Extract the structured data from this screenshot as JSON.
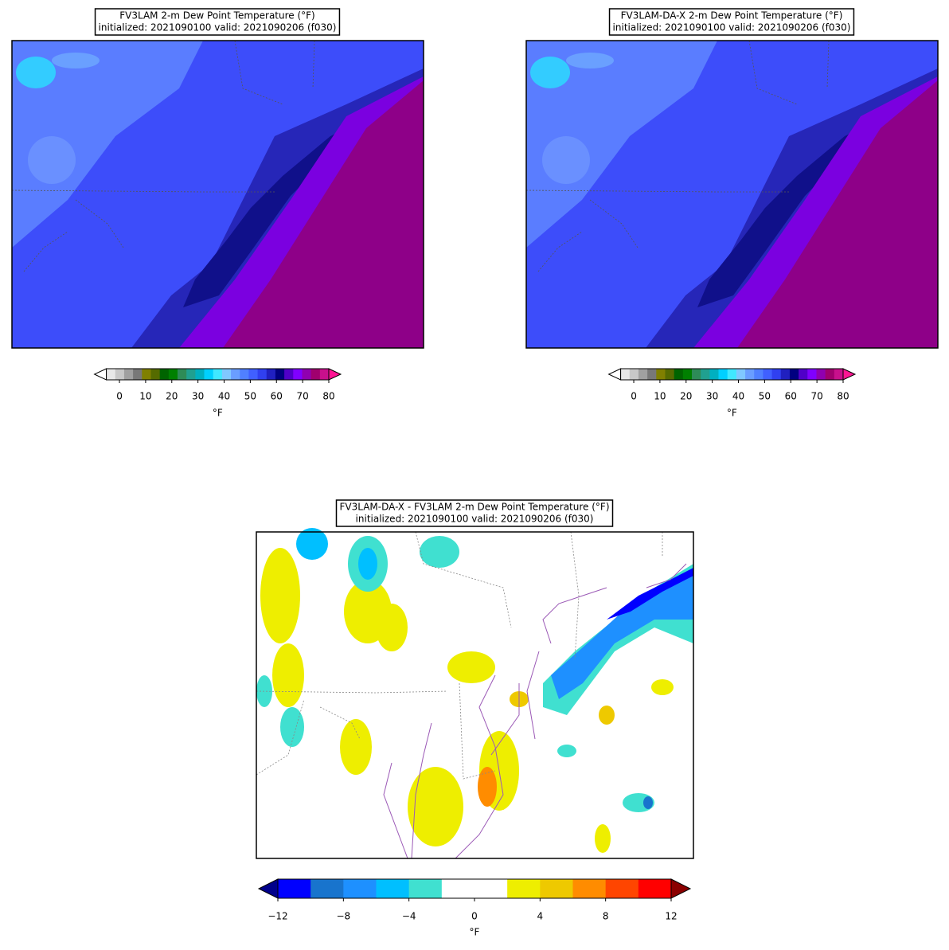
{
  "panels": [
    {
      "title": "FV3LAM 2-m Dew Point Temperature (°F)",
      "subtitle": "initialized: 2021090100 valid: 2021090206 (f030)",
      "colorbar": {
        "range": [
          -5,
          80
        ],
        "ticks": [
          0,
          10,
          20,
          30,
          40,
          50,
          60,
          70,
          80
        ],
        "label": "°F",
        "colors": [
          "#e8e8e8",
          "#c8c8c8",
          "#a0a0a0",
          "#787878",
          "#808000",
          "#556b00",
          "#006400",
          "#008000",
          "#2e8b57",
          "#20a090",
          "#00b0c0",
          "#00d0ff",
          "#40e8ff",
          "#80c8ff",
          "#6a9eff",
          "#5080ff",
          "#4060ff",
          "#3040f0",
          "#2020c0",
          "#000080",
          "#5000c8",
          "#8000ff",
          "#9000b0",
          "#a0006e",
          "#c8108c"
        ],
        "under_color": "#ffffff",
        "over_color": "#ff1493"
      }
    },
    {
      "title": "FV3LAM-DA-X 2-m Dew Point Temperature (°F)",
      "subtitle": "initialized: 2021090100 valid: 2021090206 (f030)",
      "colorbar": {
        "range": [
          -5,
          80
        ],
        "ticks": [
          0,
          10,
          20,
          30,
          40,
          50,
          60,
          70,
          80
        ],
        "label": "°F",
        "colors": [
          "#e8e8e8",
          "#c8c8c8",
          "#a0a0a0",
          "#787878",
          "#808000",
          "#556b00",
          "#006400",
          "#008000",
          "#2e8b57",
          "#20a090",
          "#00b0c0",
          "#00d0ff",
          "#40e8ff",
          "#80c8ff",
          "#6a9eff",
          "#5080ff",
          "#4060ff",
          "#3040f0",
          "#2020c0",
          "#000080",
          "#5000c8",
          "#8000ff",
          "#9000b0",
          "#a0006e",
          "#c8108c"
        ],
        "under_color": "#ffffff",
        "over_color": "#ff1493"
      }
    },
    {
      "title": "FV3LAM-DA-X - FV3LAM 2-m Dew Point Temperature (°F)",
      "subtitle": "initialized: 2021090100 valid: 2021090206 (f030)",
      "colorbar": {
        "range": [
          -12,
          12
        ],
        "ticks": [
          {
            "value": -12,
            "label": "−12"
          },
          {
            "value": -8,
            "label": "−8"
          },
          {
            "value": -4,
            "label": "−4"
          },
          0,
          4,
          8,
          12
        ],
        "label": "°F",
        "colors": [
          "#0000ff",
          "#1874cd",
          "#1e90ff",
          "#00bfff",
          "#40e0d0",
          "#ffffff",
          "#ffffff",
          "#eeee00",
          "#eec900",
          "#ff8c00",
          "#ff4500",
          "#ff0000"
        ],
        "under_color": "#00008b",
        "over_color": "#8b0000"
      }
    }
  ]
}
